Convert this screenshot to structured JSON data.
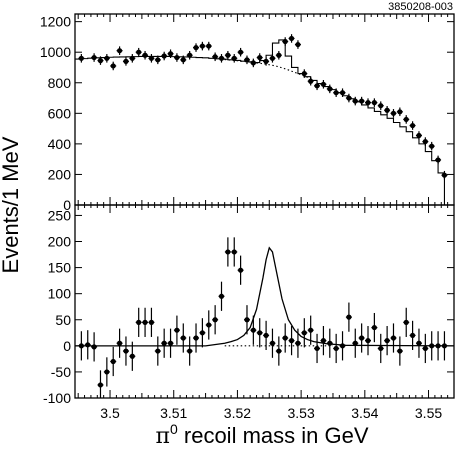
{
  "figure_id": "3850208-003",
  "ylabel": "Events/1 MeV",
  "xlabel_symbol": "π",
  "xlabel_superscript": "0",
  "xlabel_rest": " recoil mass in GeV",
  "chart_data": [
    {
      "type": "scatter",
      "panel": "top",
      "ylim": [
        0,
        1250
      ],
      "xlim": [
        3.4945,
        3.554
      ],
      "yticks": [
        0,
        200,
        400,
        600,
        800,
        1000,
        1200
      ],
      "ytick_labels": [
        "0",
        "200",
        "400",
        "600",
        "800",
        "1000",
        "1200"
      ],
      "series": [
        {
          "role": "data",
          "x": [
            3.4955,
            3.4975,
            3.4985,
            3.4995,
            3.5005,
            3.5015,
            3.5025,
            3.5035,
            3.5045,
            3.5055,
            3.5065,
            3.5075,
            3.5085,
            3.5095,
            3.5105,
            3.5115,
            3.5125,
            3.5135,
            3.5145,
            3.5155,
            3.5165,
            3.5175,
            3.5185,
            3.5195,
            3.5205,
            3.5215,
            3.5225,
            3.5235,
            3.5245,
            3.5255,
            3.5265,
            3.5275,
            3.5285,
            3.5295,
            3.5305,
            3.5315,
            3.5325,
            3.5335,
            3.5345,
            3.5355,
            3.5365,
            3.5375,
            3.5385,
            3.5395,
            3.5405,
            3.5415,
            3.5425,
            3.5435,
            3.5445,
            3.5455,
            3.5465,
            3.5475,
            3.5485,
            3.5495,
            3.5505,
            3.5515,
            3.5525
          ],
          "y": [
            960,
            965,
            945,
            960,
            910,
            1010,
            940,
            960,
            1000,
            980,
            960,
            950,
            975,
            990,
            965,
            950,
            980,
            1030,
            1040,
            1040,
            970,
            960,
            980,
            960,
            1000,
            950,
            930,
            965,
            940,
            960,
            980,
            1070,
            1090,
            1050,
            860,
            810,
            780,
            790,
            760,
            735,
            735,
            700,
            680,
            680,
            670,
            670,
            650,
            620,
            600,
            610,
            560,
            520,
            455,
            415,
            385,
            295,
            195
          ],
          "yerr": 28
        },
        {
          "role": "fit_total",
          "x": [
            3.4945,
            3.4955,
            3.4965,
            3.4975,
            3.4985,
            3.4995,
            3.5005,
            3.5015,
            3.5025,
            3.5035,
            3.5045,
            3.5055,
            3.5065,
            3.5075,
            3.5085,
            3.5095,
            3.5105,
            3.5115,
            3.5125,
            3.5135,
            3.5145,
            3.5155,
            3.5165,
            3.5175,
            3.5185,
            3.5195,
            3.5205,
            3.5215,
            3.5225,
            3.5235,
            3.5245,
            3.5255,
            3.5265,
            3.5275,
            3.5285,
            3.5295,
            3.5305,
            3.5315,
            3.5325,
            3.5335,
            3.5345,
            3.5355,
            3.5365,
            3.5375,
            3.5385,
            3.5395,
            3.5405,
            3.5415,
            3.5425,
            3.5435,
            3.5445,
            3.5455,
            3.5465,
            3.5475,
            3.5485,
            3.5495,
            3.5505,
            3.5515,
            3.5525,
            3.5535
          ],
          "y": [
            955,
            958,
            961,
            963,
            965,
            967,
            968,
            969,
            970,
            971,
            972,
            972,
            972,
            972,
            972,
            971,
            970,
            969,
            967,
            965,
            963,
            960,
            957,
            954,
            950,
            946,
            941,
            937,
            932,
            945,
            980,
            1060,
            1080,
            975,
            900,
            860,
            840,
            815,
            795,
            775,
            755,
            735,
            715,
            695,
            675,
            655,
            635,
            612,
            590,
            567,
            540,
            512,
            480,
            440,
            400,
            350,
            290,
            210,
            0,
            0
          ]
        },
        {
          "role": "fit_background",
          "x": [
            3.518,
            3.519,
            3.52,
            3.521,
            3.522,
            3.523,
            3.524,
            3.525,
            3.526,
            3.527,
            3.528,
            3.529,
            3.53,
            3.531,
            3.532
          ],
          "y": [
            952,
            948,
            944,
            940,
            935,
            930,
            925,
            918,
            910,
            898,
            884,
            868,
            852,
            836,
            820
          ]
        }
      ]
    },
    {
      "type": "scatter",
      "panel": "bottom",
      "ylim": [
        -100,
        270
      ],
      "xlim": [
        3.4945,
        3.554
      ],
      "xticks": [
        3.5,
        3.51,
        3.52,
        3.53,
        3.54,
        3.55
      ],
      "xtick_labels": [
        "3.5",
        "3.51",
        "3.52",
        "3.53",
        "3.54",
        "3.55"
      ],
      "yticks": [
        -100,
        -50,
        0,
        50,
        100,
        150,
        200,
        250
      ],
      "ytick_labels": [
        "-100",
        "-50",
        "0",
        "50",
        "100",
        "150",
        "200",
        "250"
      ],
      "series": [
        {
          "role": "data",
          "x": [
            3.4955,
            3.4965,
            3.4975,
            3.4985,
            3.4995,
            3.5005,
            3.5015,
            3.5025,
            3.5035,
            3.5045,
            3.5055,
            3.5065,
            3.5075,
            3.5085,
            3.5095,
            3.5105,
            3.5115,
            3.5125,
            3.5135,
            3.5145,
            3.5155,
            3.5165,
            3.5175,
            3.5185,
            3.5195,
            3.5205,
            3.5215,
            3.5225,
            3.5235,
            3.5245,
            3.5255,
            3.5265,
            3.5275,
            3.5285,
            3.5295,
            3.5305,
            3.5315,
            3.5325,
            3.5335,
            3.5345,
            3.5355,
            3.5365,
            3.5375,
            3.5385,
            3.5395,
            3.5405,
            3.5415,
            3.5425,
            3.5435,
            3.5445,
            3.5455,
            3.5465,
            3.5475,
            3.5485,
            3.5495,
            3.5505,
            3.5515,
            3.5525
          ],
          "y": [
            0,
            2,
            -2,
            -75,
            -50,
            -30,
            5,
            -10,
            -20,
            45,
            45,
            45,
            -10,
            5,
            5,
            30,
            15,
            -10,
            15,
            25,
            40,
            50,
            95,
            180,
            180,
            145,
            50,
            30,
            25,
            20,
            5,
            -10,
            15,
            10,
            5,
            25,
            30,
            -5,
            10,
            5,
            -5,
            0,
            55,
            5,
            15,
            10,
            35,
            -5,
            10,
            15,
            -10,
            45,
            20,
            5,
            -5,
            0,
            0,
            0
          ],
          "yerr": 28
        },
        {
          "role": "fit_signal",
          "x": [
            3.4945,
            3.515,
            3.518,
            3.519,
            3.52,
            3.521,
            3.522,
            3.523,
            3.524,
            3.5245,
            3.525,
            3.5255,
            3.526,
            3.527,
            3.528,
            3.529,
            3.53,
            3.531,
            3.532,
            3.534,
            3.537,
            3.554
          ],
          "y": [
            0,
            0,
            5,
            8,
            12,
            20,
            35,
            70,
            130,
            165,
            188,
            180,
            150,
            90,
            50,
            30,
            18,
            12,
            8,
            4,
            1,
            0
          ]
        },
        {
          "role": "fit_baseline",
          "x": [
            3.518,
            3.535
          ],
          "y": [
            0,
            0
          ]
        }
      ]
    }
  ]
}
